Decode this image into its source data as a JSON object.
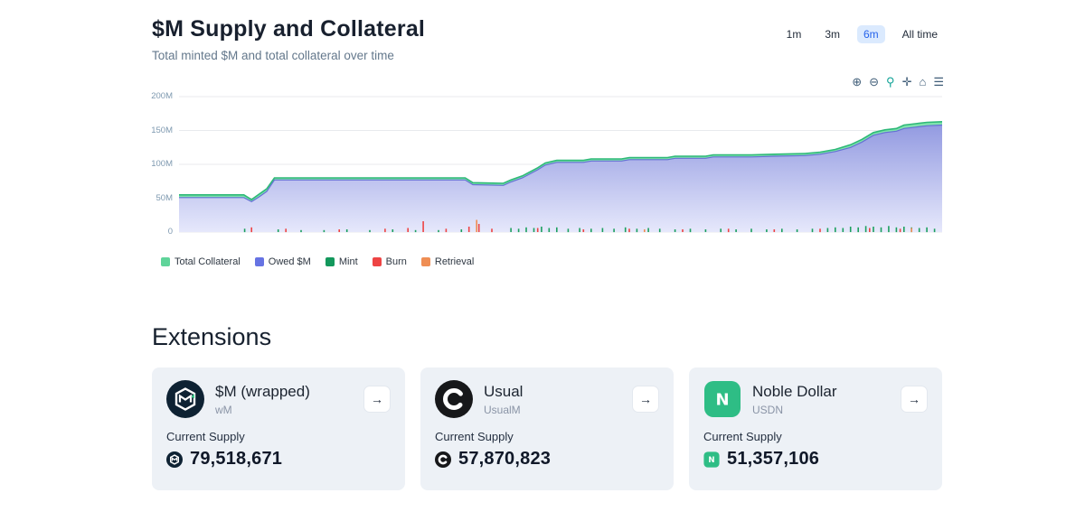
{
  "chart": {
    "title": "$M Supply and Collateral",
    "subtitle": "Total minted $M and total collateral over time",
    "time_ranges": [
      {
        "label": "1m",
        "active": false
      },
      {
        "label": "3m",
        "active": false
      },
      {
        "label": "6m",
        "active": true
      },
      {
        "label": "All time",
        "active": false
      }
    ],
    "toolbar": [
      {
        "name": "zoom-in",
        "glyph": "⊕"
      },
      {
        "name": "zoom-out",
        "glyph": "⊖"
      },
      {
        "name": "box-zoom",
        "glyph": "⚲"
      },
      {
        "name": "pan",
        "glyph": "✛"
      },
      {
        "name": "reset-home",
        "glyph": "⌂"
      },
      {
        "name": "menu",
        "glyph": "☰"
      }
    ],
    "y_ticks": [
      "200M",
      "150M",
      "100M",
      "50M",
      "0"
    ],
    "legend": [
      {
        "label": "Total Collateral",
        "color": "#5fd49a"
      },
      {
        "label": "Owed $M",
        "color": "#6673e3"
      },
      {
        "label": "Mint",
        "color": "#13985c"
      },
      {
        "label": "Burn",
        "color": "#ee4444"
      },
      {
        "label": "Retrieval",
        "color": "#ef8e54"
      }
    ]
  },
  "chart_data": {
    "type": "area",
    "title": "$M Supply and Collateral",
    "subtitle": "Total minted $M and total collateral over time",
    "x_axis": "time over selected 6m range, expressed as 0-100 percent of plot width",
    "ylim": [
      0,
      200
    ],
    "y_tick_values": [
      0,
      50,
      100,
      150,
      200
    ],
    "y_tick_labels": [
      "0",
      "50M",
      "100M",
      "150M",
      "200M"
    ],
    "units": "millions of $M",
    "series": [
      {
        "name": "Total Collateral",
        "color": "#7fe3ad",
        "stroke": "#2eb878",
        "points": [
          [
            0,
            55
          ],
          [
            8.5,
            55
          ],
          [
            9.5,
            48
          ],
          [
            10.5,
            56
          ],
          [
            11.5,
            64
          ],
          [
            12.5,
            80
          ],
          [
            37.5,
            80
          ],
          [
            38.5,
            73
          ],
          [
            42.5,
            72
          ],
          [
            43.5,
            77
          ],
          [
            45,
            83
          ],
          [
            46,
            89
          ],
          [
            47,
            95
          ],
          [
            48,
            102
          ],
          [
            49.5,
            106
          ],
          [
            53,
            106
          ],
          [
            54,
            108
          ],
          [
            58,
            108
          ],
          [
            59,
            110
          ],
          [
            64,
            110
          ],
          [
            65,
            112
          ],
          [
            69,
            112
          ],
          [
            70,
            114
          ],
          [
            75,
            114
          ],
          [
            78,
            115
          ],
          [
            82,
            116
          ],
          [
            84,
            118
          ],
          [
            86,
            122
          ],
          [
            88,
            129
          ],
          [
            89.5,
            137
          ],
          [
            91,
            147
          ],
          [
            92.5,
            151
          ],
          [
            94,
            153
          ],
          [
            95,
            158
          ],
          [
            96.5,
            160
          ],
          [
            98,
            162
          ],
          [
            100,
            163
          ]
        ]
      },
      {
        "name": "Owed $M",
        "color_top": "#7d86da",
        "color_bottom": "#e8eafc",
        "stroke": "#6570d4",
        "points": [
          [
            0,
            51
          ],
          [
            8.5,
            51
          ],
          [
            9.5,
            45
          ],
          [
            10.5,
            52
          ],
          [
            11.5,
            60
          ],
          [
            12.5,
            77
          ],
          [
            37.5,
            77
          ],
          [
            38.5,
            70
          ],
          [
            42.5,
            69
          ],
          [
            43.5,
            74
          ],
          [
            45,
            80
          ],
          [
            46,
            86
          ],
          [
            47,
            92
          ],
          [
            48,
            99
          ],
          [
            49.5,
            103
          ],
          [
            53,
            103
          ],
          [
            54,
            105
          ],
          [
            58,
            105
          ],
          [
            59,
            107
          ],
          [
            64,
            107
          ],
          [
            65,
            109
          ],
          [
            69,
            109
          ],
          [
            70,
            111
          ],
          [
            75,
            111
          ],
          [
            78,
            112
          ],
          [
            82,
            113
          ],
          [
            84,
            115
          ],
          [
            86,
            119
          ],
          [
            88,
            125
          ],
          [
            89.5,
            133
          ],
          [
            91,
            143
          ],
          [
            92.5,
            147
          ],
          [
            94,
            149
          ],
          [
            95,
            153
          ],
          [
            96.5,
            155
          ],
          [
            98,
            157
          ],
          [
            100,
            158
          ]
        ]
      }
    ],
    "event_ticks": {
      "mint": {
        "color": "#1ca05f",
        "ticks": [
          [
            8.6,
            5
          ],
          [
            13,
            4
          ],
          [
            16,
            3
          ],
          [
            19,
            3
          ],
          [
            22,
            4
          ],
          [
            25,
            3
          ],
          [
            28,
            4
          ],
          [
            31,
            3
          ],
          [
            34,
            3
          ],
          [
            37,
            4
          ],
          [
            43.5,
            6
          ],
          [
            44.5,
            5
          ],
          [
            45.5,
            7
          ],
          [
            46.5,
            6
          ],
          [
            47.5,
            8
          ],
          [
            48.5,
            6
          ],
          [
            49.5,
            7
          ],
          [
            51,
            5
          ],
          [
            52.5,
            6
          ],
          [
            54,
            5
          ],
          [
            55.5,
            6
          ],
          [
            57,
            5
          ],
          [
            58.5,
            7
          ],
          [
            60,
            5
          ],
          [
            61.5,
            6
          ],
          [
            63,
            5
          ],
          [
            65,
            4
          ],
          [
            67,
            5
          ],
          [
            69,
            4
          ],
          [
            71,
            5
          ],
          [
            73,
            4
          ],
          [
            75,
            5
          ],
          [
            77,
            4
          ],
          [
            79,
            5
          ],
          [
            81,
            4
          ],
          [
            83,
            5
          ],
          [
            85,
            6
          ],
          [
            86,
            7
          ],
          [
            87,
            6
          ],
          [
            88,
            8
          ],
          [
            89,
            7
          ],
          [
            90,
            9
          ],
          [
            91,
            8
          ],
          [
            92,
            7
          ],
          [
            93,
            9
          ],
          [
            94,
            7
          ],
          [
            95,
            8
          ],
          [
            96,
            7
          ],
          [
            97,
            6
          ],
          [
            98,
            7
          ],
          [
            99,
            5
          ]
        ]
      },
      "burn": {
        "color": "#ee4444",
        "ticks": [
          [
            9.5,
            7
          ],
          [
            14,
            5
          ],
          [
            21,
            4
          ],
          [
            27,
            5
          ],
          [
            30,
            6
          ],
          [
            32,
            16
          ],
          [
            35,
            5
          ],
          [
            38,
            8
          ],
          [
            39.3,
            12
          ],
          [
            41,
            5
          ],
          [
            47,
            6
          ],
          [
            53,
            4
          ],
          [
            59,
            5
          ],
          [
            66,
            4
          ],
          [
            72,
            5
          ],
          [
            78,
            4
          ],
          [
            84,
            5
          ],
          [
            90.5,
            6
          ],
          [
            94.5,
            5
          ]
        ]
      },
      "retrieval": {
        "color": "#ef8e54",
        "ticks": [
          [
            39,
            18
          ],
          [
            61,
            4
          ],
          [
            96,
            6
          ]
        ]
      }
    },
    "legend_position": "bottom-left",
    "grid": "horizontal only"
  },
  "extensions": {
    "heading": "Extensions",
    "arrow_glyph": "→",
    "cards": [
      {
        "title": "$M (wrapped)",
        "symbol": "wM",
        "supply_label": "Current Supply",
        "supply": "79,518,671"
      },
      {
        "title": "Usual",
        "symbol": "UsualM",
        "supply_label": "Current Supply",
        "supply": "57,870,823"
      },
      {
        "title": "Noble Dollar",
        "symbol": "USDN",
        "supply_label": "Current Supply",
        "supply": "51,357,106"
      }
    ]
  }
}
